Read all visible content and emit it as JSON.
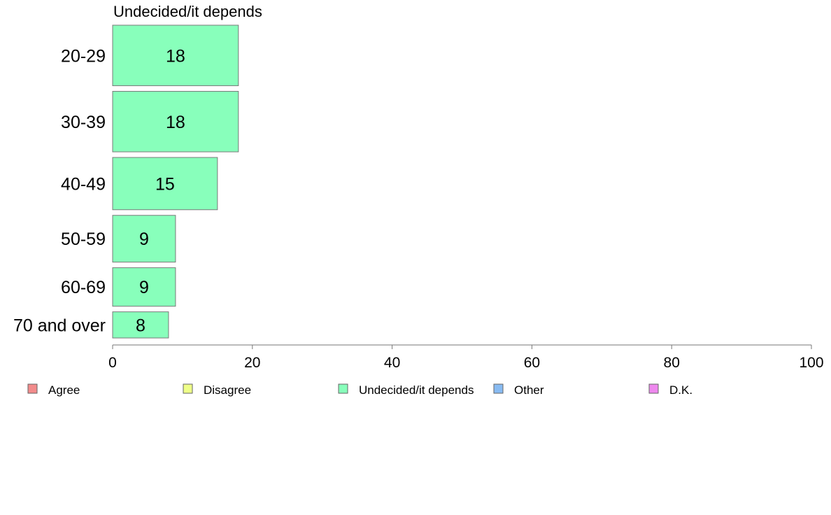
{
  "chart_data": {
    "type": "bar",
    "orientation": "horizontal",
    "facet_title": "Undecided/it depends",
    "categories": [
      "20-29",
      "30-39",
      "40-49",
      "50-59",
      "60-69",
      "70 and over"
    ],
    "category_weights": [
      0.88,
      0.88,
      0.76,
      0.68,
      0.56,
      0.38
    ],
    "series": [
      {
        "name": "Undecided/it depends",
        "color": "#88ffbb",
        "values": [
          18,
          18,
          15,
          9,
          9,
          8
        ],
        "value_labels": [
          "18",
          "18",
          "15",
          "9",
          "9",
          "8"
        ]
      }
    ],
    "xlim": [
      0,
      100
    ],
    "x_ticks": [
      0,
      20,
      40,
      60,
      80,
      100
    ],
    "x_tick_labels": [
      "0",
      "20",
      "40",
      "60",
      "80",
      "100"
    ],
    "grid": false,
    "legend_position": "bottom",
    "legend": [
      {
        "label": "Agree",
        "color": "#f28b8b"
      },
      {
        "label": "Disagree",
        "color": "#eeff88"
      },
      {
        "label": "Undecided/it depends",
        "color": "#88ffbb"
      },
      {
        "label": "Other",
        "color": "#88bbf2"
      },
      {
        "label": "D.K.",
        "color": "#ee88ee"
      }
    ]
  }
}
